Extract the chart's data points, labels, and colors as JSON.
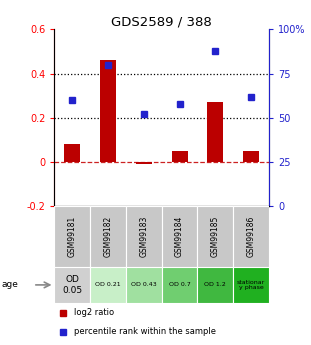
{
  "title": "GDS2589 / 388",
  "samples": [
    "GSM99181",
    "GSM99182",
    "GSM99183",
    "GSM99184",
    "GSM99185",
    "GSM99186"
  ],
  "log2_ratio": [
    0.08,
    0.46,
    -0.01,
    0.05,
    0.27,
    0.05
  ],
  "percentile_rank_pct": [
    60,
    80,
    52,
    58,
    88,
    62
  ],
  "ylim_left": [
    -0.2,
    0.6
  ],
  "ylim_right": [
    0,
    100
  ],
  "yticks_left": [
    -0.2,
    0.0,
    0.2,
    0.4,
    0.6
  ],
  "ytick_labels_left": [
    "-0.2",
    "0",
    "0.2",
    "0.4",
    "0.6"
  ],
  "yticks_right": [
    0,
    25,
    50,
    75,
    100
  ],
  "ytick_labels_right": [
    "0",
    "25",
    "50",
    "75",
    "100%"
  ],
  "hlines": [
    0.2,
    0.4
  ],
  "age_labels": [
    "OD\n0.05",
    "OD 0.21",
    "OD 0.43",
    "OD 0.7",
    "OD 1.2",
    "stationar\ny phase"
  ],
  "age_colors": [
    "#d0d0d0",
    "#c8efc8",
    "#a0e0a0",
    "#70ce70",
    "#40b840",
    "#20b020"
  ],
  "bar_color": "#bb0000",
  "dot_color": "#2222cc",
  "zero_line_color": "#cc2222",
  "sample_bg_color": "#c8c8c8",
  "right_axis_color": "#2222cc",
  "legend_bar_color": "#bb0000",
  "legend_dot_color": "#2222cc"
}
